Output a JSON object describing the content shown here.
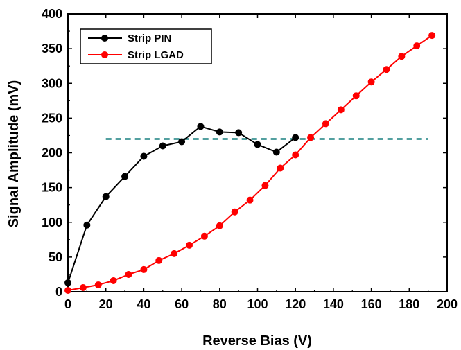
{
  "chart_data": {
    "type": "line",
    "title": "",
    "xlabel": "Reverse Bias (V)",
    "ylabel": "Signal Amplitude (mV)",
    "xlim": [
      0,
      200
    ],
    "ylim": [
      0,
      400
    ],
    "xticks": [
      0,
      20,
      40,
      60,
      80,
      100,
      120,
      140,
      160,
      180,
      200
    ],
    "yticks": [
      0,
      50,
      100,
      150,
      200,
      250,
      300,
      350,
      400
    ],
    "grid": false,
    "legend_position": "top-left",
    "series": [
      {
        "name": "Strip PIN",
        "color": "#000000",
        "marker": "circle",
        "x": [
          0,
          10,
          20,
          30,
          40,
          50,
          60,
          70,
          80,
          90,
          100,
          110,
          120
        ],
        "y": [
          13,
          96,
          137,
          166,
          195,
          210,
          216,
          238,
          230,
          229,
          212,
          201,
          222
        ]
      },
      {
        "name": "Strip LGAD",
        "color": "#ff0000",
        "marker": "circle",
        "x": [
          0,
          8,
          16,
          24,
          32,
          40,
          48,
          56,
          64,
          72,
          80,
          88,
          96,
          104,
          112,
          120,
          128,
          136,
          144,
          152,
          160,
          168,
          176,
          184,
          192
        ],
        "y": [
          2,
          6,
          10,
          16,
          25,
          32,
          45,
          55,
          67,
          80,
          95,
          115,
          132,
          153,
          178,
          197,
          222,
          242,
          262,
          282,
          302,
          320,
          339,
          354,
          369
        ]
      }
    ],
    "reference_line": {
      "style": "dashed",
      "color": "#1a8080",
      "y": 220,
      "x": [
        20,
        190
      ]
    }
  }
}
